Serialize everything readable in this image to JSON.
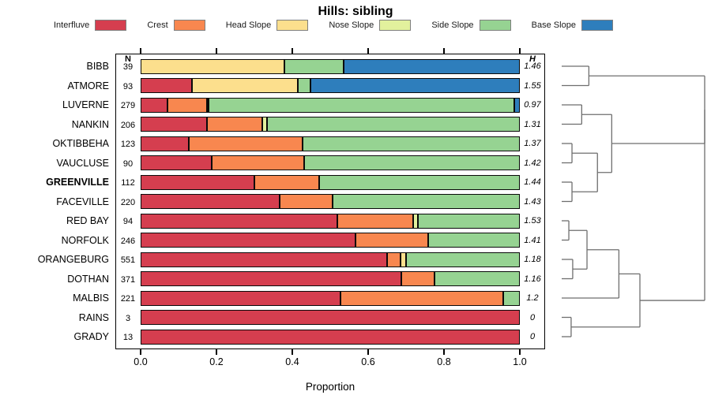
{
  "title": "Hills: sibling",
  "axis": {
    "ticks": [
      "0.0",
      "0.2",
      "0.4",
      "0.6",
      "0.8",
      "1.0"
    ],
    "xlabel": "Proportion",
    "n_header": "N",
    "h_header": "H"
  },
  "chart_data": {
    "type": "bar",
    "subtype": "horizontal-stacked-proportion",
    "title": "Hills: sibling",
    "xlabel": "Proportion",
    "xlim": [
      0,
      1
    ],
    "legend_position": "top",
    "series_colors": {
      "interfluve": "#d53e4f",
      "crest": "#f8874f",
      "head": "#fcdf8d",
      "nose": "#e2f19d",
      "side": "#96d392",
      "base": "#2e7ebc"
    },
    "legend": [
      {
        "key": "interfluve",
        "label": "Interfluve"
      },
      {
        "key": "crest",
        "label": "Crest"
      },
      {
        "key": "head",
        "label": "Head Slope"
      },
      {
        "key": "nose",
        "label": "Nose Slope"
      },
      {
        "key": "side",
        "label": "Side Slope"
      },
      {
        "key": "base",
        "label": "Base Slope"
      }
    ],
    "rows": [
      {
        "name": "BIBB",
        "n": "39",
        "h": "1.46",
        "bold": false,
        "segments": [
          [
            "head",
            0.38
          ],
          [
            "side",
            0.155
          ],
          [
            "base",
            0.465
          ]
        ]
      },
      {
        "name": "ATMORE",
        "n": "93",
        "h": "1.55",
        "bold": false,
        "segments": [
          [
            "interfluve",
            0.136
          ],
          [
            "head",
            0.279
          ],
          [
            "side",
            0.032
          ],
          [
            "base",
            0.553
          ]
        ]
      },
      {
        "name": "LUVERNE",
        "n": "279",
        "h": "0.97",
        "bold": false,
        "segments": [
          [
            "interfluve",
            0.07
          ],
          [
            "crest",
            0.105
          ],
          [
            "nose",
            0.005
          ],
          [
            "side",
            0.805
          ],
          [
            "base",
            0.015
          ]
        ]
      },
      {
        "name": "NANKIN",
        "n": "206",
        "h": "1.31",
        "bold": false,
        "segments": [
          [
            "interfluve",
            0.176
          ],
          [
            "crest",
            0.145
          ],
          [
            "nose",
            0.012
          ],
          [
            "side",
            0.667
          ]
        ]
      },
      {
        "name": "OKTIBBEHA",
        "n": "123",
        "h": "1.37",
        "bold": false,
        "segments": [
          [
            "interfluve",
            0.128
          ],
          [
            "crest",
            0.299
          ],
          [
            "side",
            0.573
          ]
        ]
      },
      {
        "name": "VAUCLUSE",
        "n": "90",
        "h": "1.42",
        "bold": false,
        "segments": [
          [
            "interfluve",
            0.187
          ],
          [
            "crest",
            0.244
          ],
          [
            "side",
            0.569
          ]
        ]
      },
      {
        "name": "GREENVILLE",
        "n": "112",
        "h": "1.44",
        "bold": true,
        "segments": [
          [
            "interfluve",
            0.3
          ],
          [
            "crest",
            0.17
          ],
          [
            "side",
            0.53
          ]
        ]
      },
      {
        "name": "FACEVILLE",
        "n": "220",
        "h": "1.43",
        "bold": false,
        "segments": [
          [
            "interfluve",
            0.366
          ],
          [
            "crest",
            0.14
          ],
          [
            "side",
            0.494
          ]
        ]
      },
      {
        "name": "RED BAY",
        "n": "94",
        "h": "1.53",
        "bold": false,
        "segments": [
          [
            "interfluve",
            0.519
          ],
          [
            "crest",
            0.199
          ],
          [
            "nose",
            0.014
          ],
          [
            "side",
            0.268
          ]
        ]
      },
      {
        "name": "NORFOLK",
        "n": "246",
        "h": "1.41",
        "bold": false,
        "segments": [
          [
            "interfluve",
            0.567
          ],
          [
            "crest",
            0.192
          ],
          [
            "side",
            0.241
          ]
        ]
      },
      {
        "name": "ORANGEBURG",
        "n": "551",
        "h": "1.18",
        "bold": false,
        "segments": [
          [
            "interfluve",
            0.651
          ],
          [
            "crest",
            0.035
          ],
          [
            "head",
            0.013
          ],
          [
            "side",
            0.301
          ]
        ]
      },
      {
        "name": "DOTHAN",
        "n": "371",
        "h": "1.16",
        "bold": false,
        "segments": [
          [
            "interfluve",
            0.688
          ],
          [
            "crest",
            0.087
          ],
          [
            "side",
            0.225
          ]
        ]
      },
      {
        "name": "MALBIS",
        "n": "221",
        "h": "1.2",
        "bold": false,
        "segments": [
          [
            "interfluve",
            0.528
          ],
          [
            "crest",
            0.429
          ],
          [
            "side",
            0.043
          ]
        ]
      },
      {
        "name": "RAINS",
        "n": "3",
        "h": "0",
        "bold": false,
        "segments": [
          [
            "interfluve",
            1.0
          ]
        ]
      },
      {
        "name": "GRADY",
        "n": "13",
        "h": "0",
        "bold": false,
        "segments": [
          [
            "interfluve",
            1.0
          ]
        ]
      }
    ],
    "dendrogram": {
      "note": "right-side cluster tree; height 0=leaf, 1=root trunk",
      "merges": [
        {
          "id": "J1",
          "a": "BIBB",
          "b": "ATMORE",
          "height": 0.19
        },
        {
          "id": "J2",
          "a": "LUVERNE",
          "b": "NANKIN",
          "height": 0.14
        },
        {
          "id": "J3",
          "a": "OKTIBBEHA",
          "b": "VAUCLUSE",
          "height": 0.072
        },
        {
          "id": "J4",
          "a": "GREENVILLE",
          "b": "FACEVILLE",
          "height": 0.072
        },
        {
          "id": "J5",
          "a": "J3",
          "b": "J4",
          "height": 0.25
        },
        {
          "id": "J6",
          "a": "J2",
          "b": "J5",
          "height": 0.35
        },
        {
          "id": "J7",
          "a": "RED BAY",
          "b": "NORFOLK",
          "height": 0.05
        },
        {
          "id": "J8",
          "a": "ORANGEBURG",
          "b": "DOTHAN",
          "height": 0.077
        },
        {
          "id": "J9",
          "a": "J7",
          "b": "J8",
          "height": 0.177
        },
        {
          "id": "J10",
          "a": "J9",
          "b": "MALBIS",
          "height": 0.4
        },
        {
          "id": "J11",
          "a": "RAINS",
          "b": "GRADY",
          "height": 0.066
        },
        {
          "id": "J12",
          "a": "J10",
          "b": "J11",
          "height": 0.547
        },
        {
          "id": "J13",
          "a": "J1",
          "b": "J6",
          "height": 1.0
        },
        {
          "id": "J14",
          "a": "J13",
          "b": "J12",
          "height": 1.0
        }
      ]
    }
  },
  "style": {
    "line_color": "#6e6e6e",
    "border_color": "#0a0a0a"
  }
}
